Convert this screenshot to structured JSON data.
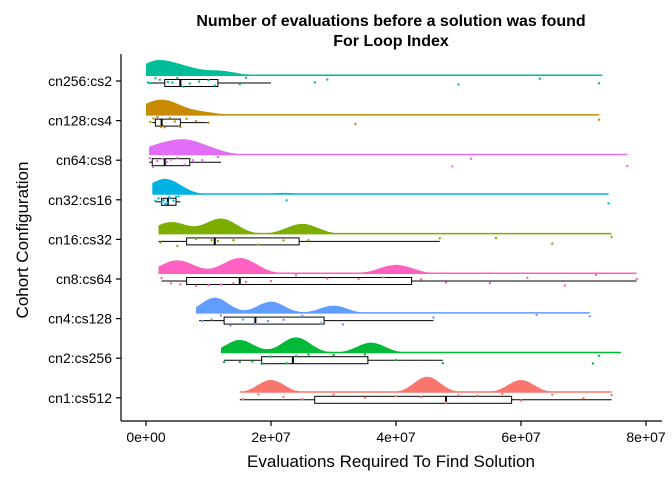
{
  "chart_data": {
    "type": "raincloud",
    "title": "Number of evaluations before a solution was found",
    "subtitle": "For Loop Index",
    "xlabel": "Evaluations Required To Find Solution",
    "ylabel": "Cohort Configuration",
    "xlim": [
      0,
      80000000
    ],
    "xticks": [
      0,
      20000000,
      40000000,
      60000000,
      80000000
    ],
    "xtick_labels": [
      "0e+00",
      "2e+07",
      "4e+07",
      "6e+07",
      "8e+07"
    ],
    "grid": false,
    "legend": "none",
    "categories": [
      "cn256:cs2",
      "cn128:cs4",
      "cn64:cs8",
      "cn32:cs16",
      "cn16:cs32",
      "cn8:cs64",
      "cn4:cs128",
      "cn2:cs256",
      "cn1:cs512"
    ],
    "series": [
      {
        "category": "cn256:cs2",
        "color": "#00BE9A",
        "min": 200000,
        "q1": 3000000,
        "median": 5500000,
        "q3": 11500000,
        "max": 20000000,
        "range": [
          0,
          73000000
        ],
        "density_peaks": [
          [
            1500000,
            1.0
          ],
          [
            6000000,
            0.55
          ],
          [
            12000000,
            0.35
          ]
        ],
        "points": [
          300000,
          800000,
          1500000,
          2200000,
          3500000,
          4200000,
          5000000,
          6000000,
          7000000,
          8500000,
          10000000,
          11000000,
          15000000,
          16000000,
          27000000,
          29000000,
          50000000,
          63000000,
          72500000
        ]
      },
      {
        "category": "cn128:cs4",
        "color": "#C88A00",
        "min": 1000000,
        "q1": 1500000,
        "median": 2500000,
        "q3": 5500000,
        "max": 10000000,
        "range": [
          0,
          72500000
        ],
        "density_peaks": [
          [
            500000,
            0.7
          ],
          [
            3500000,
            1.0
          ],
          [
            9000000,
            0.3
          ]
        ],
        "points": [
          700000,
          1200000,
          1800000,
          2400000,
          3000000,
          3800000,
          4600000,
          5500000,
          6500000,
          8000000,
          10000000,
          33500000,
          72500000
        ]
      },
      {
        "category": "cn64:cs8",
        "color": "#E26DF8",
        "min": 500000,
        "q1": 1000000,
        "median": 3000000,
        "q3": 7000000,
        "max": 12000000,
        "range": [
          500000,
          77000000
        ],
        "density_peaks": [
          [
            1500000,
            0.6
          ],
          [
            6000000,
            1.0
          ],
          [
            10000000,
            0.4
          ]
        ],
        "points": [
          600000,
          1100000,
          1800000,
          2600000,
          3300000,
          4000000,
          5000000,
          6200000,
          7500000,
          9000000,
          11500000,
          49000000,
          52000000,
          77000000
        ]
      },
      {
        "category": "cn32:cs16",
        "color": "#00B2E3",
        "min": 1500000,
        "q1": 2500000,
        "median": 3500000,
        "q3": 4800000,
        "max": 5500000,
        "range": [
          1000000,
          74000000
        ],
        "density_peaks": [
          [
            3000000,
            1.0
          ],
          [
            22000000,
            0.12
          ]
        ],
        "points": [
          1500000,
          2000000,
          2500000,
          2800000,
          3100000,
          3400000,
          3700000,
          4000000,
          4400000,
          4800000,
          5200000,
          22500000,
          74000000
        ]
      },
      {
        "category": "cn16:cs32",
        "color": "#7CAE00",
        "min": 2000000,
        "q1": 6500000,
        "median": 11000000,
        "q3": 24500000,
        "max": 47000000,
        "range": [
          2000000,
          74500000
        ],
        "density_peaks": [
          [
            4000000,
            0.35
          ],
          [
            12000000,
            0.45
          ],
          [
            25000000,
            0.3
          ]
        ],
        "points": [
          2300000,
          5000000,
          8000000,
          10500000,
          11500000,
          14000000,
          18000000,
          22000000,
          26000000,
          47000000,
          56000000,
          65000000,
          74500000
        ]
      },
      {
        "category": "cn8:cs64",
        "color": "#FF61C3",
        "min": 2500000,
        "q1": 6500000,
        "median": 15000000,
        "q3": 42500000,
        "max": 78500000,
        "range": [
          2000000,
          78500000
        ],
        "density_peaks": [
          [
            5000000,
            0.3
          ],
          [
            15000000,
            0.35
          ],
          [
            40000000,
            0.2
          ]
        ],
        "points": [
          2500000,
          4000000,
          5500000,
          8000000,
          10000000,
          12000000,
          14000000,
          16000000,
          20000000,
          24000000,
          29000000,
          34000000,
          38000000,
          44000000,
          48000000,
          55000000,
          61000000,
          67000000,
          72000000,
          78500000
        ]
      },
      {
        "category": "cn4:cs128",
        "color": "#619CFF",
        "min": 8500000,
        "q1": 12500000,
        "median": 17500000,
        "q3": 28500000,
        "max": 46000000,
        "range": [
          8000000,
          71000000
        ],
        "density_peaks": [
          [
            11000000,
            0.8
          ],
          [
            20000000,
            0.6
          ],
          [
            30000000,
            0.4
          ]
        ],
        "points": [
          9000000,
          10500000,
          12000000,
          13500000,
          15500000,
          17500000,
          19500000,
          22000000,
          25000000,
          28000000,
          31500000,
          46000000,
          62500000,
          71000000
        ]
      },
      {
        "category": "cn2:cs256",
        "color": "#00BA38",
        "min": 12500000,
        "q1": 18500000,
        "median": 23500000,
        "q3": 35500000,
        "max": 47500000,
        "range": [
          12000000,
          76000000
        ],
        "density_peaks": [
          [
            15000000,
            0.5
          ],
          [
            24000000,
            0.6
          ],
          [
            36000000,
            0.4
          ]
        ],
        "points": [
          12500000,
          15000000,
          17000000,
          18500000,
          20000000,
          22500000,
          24000000,
          26000000,
          30000000,
          35000000,
          40000000,
          47500000,
          71500000,
          72500000
        ]
      },
      {
        "category": "cn1:cs512",
        "color": "#F8766D",
        "min": 15000000,
        "q1": 27000000,
        "median": 48000000,
        "q3": 58500000,
        "max": 74500000,
        "range": [
          15000000,
          74500000
        ],
        "density_peaks": [
          [
            20000000,
            0.4
          ],
          [
            45000000,
            0.5
          ],
          [
            60000000,
            0.4
          ]
        ],
        "points": [
          15500000,
          18000000,
          22000000,
          25000000,
          30000000,
          35000000,
          40000000,
          44000000,
          48000000,
          50000000,
          53000000,
          57000000,
          60000000,
          65000000,
          70000000,
          74500000
        ]
      }
    ]
  }
}
